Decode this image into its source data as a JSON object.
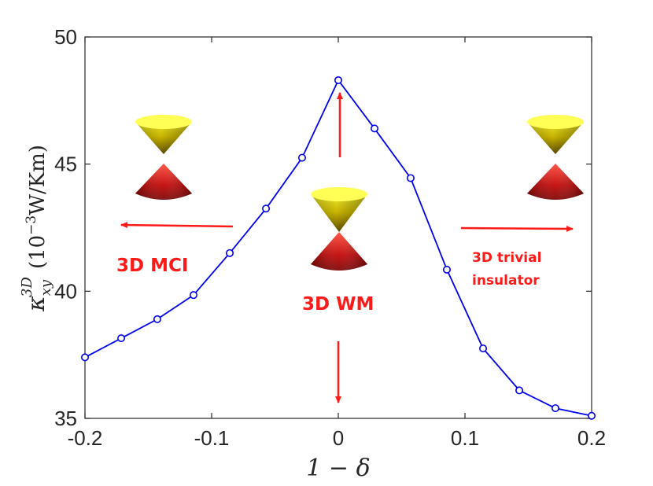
{
  "chart_data": {
    "type": "line",
    "title": "",
    "xlabel": "1 − δ",
    "ylabel": {
      "kappa": "κ",
      "sub": "xy",
      "sup": "3D",
      "units": "(10",
      "units_exp": "−3",
      "units_rest": "W/Km)"
    },
    "xlim": [
      -0.2,
      0.2
    ],
    "ylim": [
      35,
      50
    ],
    "grid": false,
    "x_ticks": [
      -0.2,
      -0.1,
      0,
      0.1,
      0.2
    ],
    "x_tick_labels": [
      "-0.2",
      "-0.1",
      "0",
      "0.1",
      "0.2"
    ],
    "y_ticks": [
      35,
      40,
      45,
      50
    ],
    "y_tick_labels": [
      "35",
      "40",
      "45",
      "50"
    ],
    "series": [
      {
        "name": "kappa_xy_3D",
        "color": "#0000ee",
        "marker": "circle-open",
        "x": [
          -0.2,
          -0.1714,
          -0.1429,
          -0.1143,
          -0.0857,
          -0.0571,
          -0.0286,
          0,
          0.0286,
          0.0571,
          0.0857,
          0.1143,
          0.1429,
          0.1714,
          0.2
        ],
        "y": [
          37.4,
          38.15,
          38.9,
          39.85,
          41.5,
          43.25,
          45.25,
          48.3,
          46.4,
          44.45,
          40.85,
          37.75,
          36.1,
          35.4,
          35.1
        ]
      }
    ],
    "annotations": {
      "mci": "3D MCI",
      "wm": "3D WM",
      "trivial_line1": "3D trivial",
      "trivial_line2": "insulator"
    },
    "colors": {
      "annotation": "#ff1a1a",
      "axis": "#262626",
      "cone_top": "#ffff33",
      "cone_bottom": "#cc0000"
    }
  }
}
